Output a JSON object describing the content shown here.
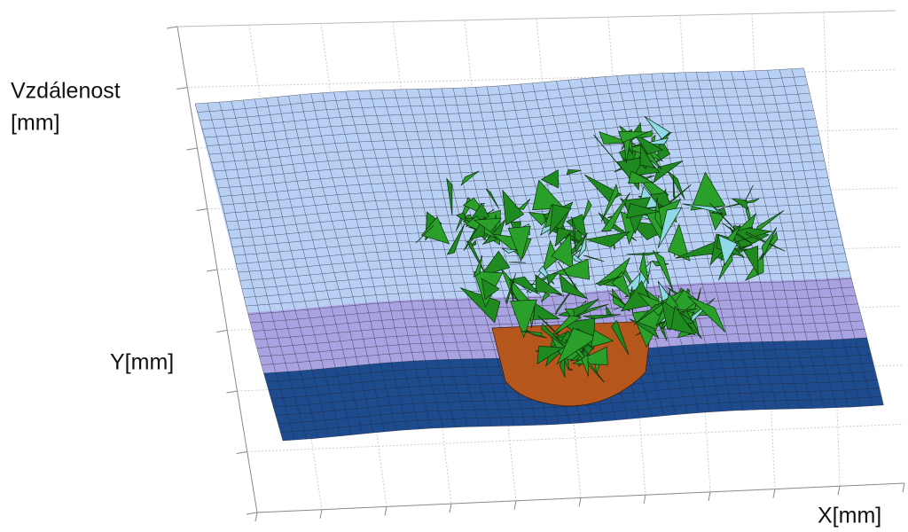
{
  "chart_data": {
    "type": "surface",
    "zlabel": [
      "Vzdálenost",
      "[mm]"
    ],
    "ylabel": "Y[mm]",
    "xlabel": "X[mm]"
  }
}
